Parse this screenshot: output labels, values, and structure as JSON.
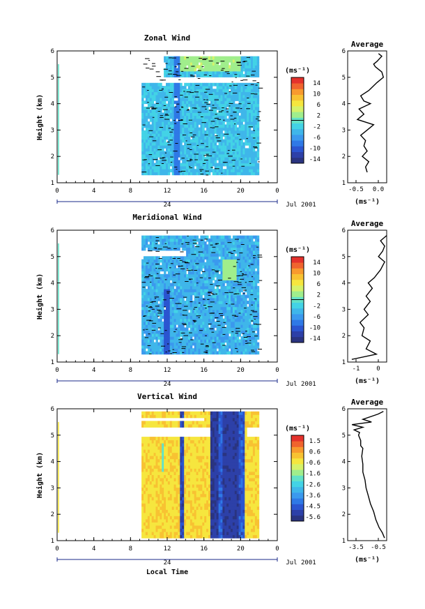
{
  "colors": {
    "colormap": [
      "#2a3480",
      "#2d40a8",
      "#2b55d0",
      "#2f79e6",
      "#3b99ee",
      "#3fb6ea",
      "#43d3e6",
      "#62e2c8",
      "#a0ee8c",
      "#d6f26a",
      "#f6e63e",
      "#f8c232",
      "#f89a2e",
      "#f0642e",
      "#e4322c"
    ]
  },
  "chart_data": [
    {
      "type": "heatmap",
      "title": "Zonal Wind",
      "ylabel": "Height (km)",
      "xlabel": "",
      "xlim": [
        0,
        24
      ],
      "ylim": [
        1,
        6
      ],
      "xticks": [
        "0",
        "4",
        "8",
        "12",
        "16",
        "20",
        "0"
      ],
      "yticks": [
        "1",
        "2",
        "3",
        "4",
        "5",
        "6"
      ],
      "date_label": "24",
      "date_right": "Jul 2001",
      "colorbar": {
        "unit": "(ms⁻¹)",
        "labels": [
          "14",
          "10",
          "6",
          "2",
          "-2",
          "-6",
          "-10",
          "-14"
        ],
        "min": -14,
        "max": 14
      },
      "data_extent": {
        "t_start": 9.2,
        "t_end": 22,
        "h_start": 1.3,
        "h_end": 5.8,
        "typical_value": -3
      }
    },
    {
      "type": "line",
      "title": "Average",
      "xlabel": "(ms⁻¹)",
      "xticks": [
        "-0.5",
        "0.0"
      ],
      "yticks": [
        "1",
        "2",
        "3",
        "4",
        "5",
        "6"
      ],
      "xlim": [
        -0.9,
        0.3
      ],
      "ylim": [
        1,
        6
      ],
      "x": [
        -0.3,
        -0.35,
        -0.25,
        -0.45,
        -0.3,
        -0.4,
        -0.35,
        -0.5,
        -0.3,
        -0.1,
        -0.6,
        -0.4,
        -0.55,
        -0.2,
        -0.4,
        -0.5,
        -0.25,
        0.0,
        0.2,
        0.15,
        -0.05,
        -0.1,
        0.0,
        0.15,
        0.05
      ],
      "y": [
        1.4,
        1.6,
        1.8,
        2.0,
        2.2,
        2.4,
        2.6,
        2.8,
        3.0,
        3.2,
        3.4,
        3.6,
        3.8,
        4.0,
        4.1,
        4.3,
        4.5,
        4.8,
        5.0,
        5.2,
        5.4,
        5.5,
        5.6,
        5.8,
        5.9
      ]
    },
    {
      "type": "heatmap",
      "title": "Meridional Wind",
      "ylabel": "Height (km)",
      "xlabel": "",
      "xlim": [
        0,
        24
      ],
      "ylim": [
        1,
        6
      ],
      "xticks": [
        "0",
        "4",
        "8",
        "12",
        "16",
        "20",
        "0"
      ],
      "yticks": [
        "1",
        "2",
        "3",
        "4",
        "5",
        "6"
      ],
      "date_label": "24",
      "date_right": "Jul 2001",
      "colorbar": {
        "unit": "(ms⁻¹)",
        "labels": [
          "14",
          "10",
          "6",
          "2",
          "-2",
          "-6",
          "-10",
          "-14"
        ],
        "min": -14,
        "max": 14
      },
      "data_extent": {
        "t_start": 9.2,
        "t_end": 22,
        "h_start": 1.3,
        "h_end": 5.8,
        "typical_value": -4
      }
    },
    {
      "type": "line",
      "title": "Average",
      "xlabel": "(ms⁻¹)",
      "xticks": [
        "-1",
        "0"
      ],
      "yticks": [
        "1",
        "2",
        "3",
        "4",
        "5",
        "6"
      ],
      "xlim": [
        -1.3,
        0.6
      ],
      "ylim": [
        1,
        6
      ],
      "x": [
        -1.1,
        0.1,
        -0.4,
        -0.2,
        -0.6,
        -0.5,
        -0.7,
        -0.3,
        -0.5,
        -0.2,
        -0.4,
        -0.1,
        -0.3,
        0.0,
        0.3,
        0.5,
        0.2,
        0.4,
        0.5,
        0.3,
        0.6
      ],
      "y": [
        1.1,
        1.3,
        1.5,
        1.8,
        2.0,
        2.3,
        2.5,
        2.8,
        3.0,
        3.3,
        3.5,
        3.8,
        4.0,
        4.2,
        4.5,
        4.8,
        5.0,
        5.2,
        5.4,
        5.6,
        5.8
      ]
    },
    {
      "type": "heatmap",
      "title": "Vertical Wind",
      "ylabel": "Height (km)",
      "xlabel": "Local Time",
      "xlim": [
        0,
        24
      ],
      "ylim": [
        1,
        6
      ],
      "xticks": [
        "0",
        "4",
        "8",
        "12",
        "16",
        "20",
        "0"
      ],
      "yticks": [
        "1",
        "2",
        "3",
        "4",
        "5",
        "6"
      ],
      "date_label": "24",
      "date_right": "Jul 2001",
      "colorbar": {
        "unit": "(ms⁻¹)",
        "labels": [
          "1.5",
          "0.6",
          "-0.6",
          "-1.6",
          "-2.6",
          "-3.6",
          "-4.5",
          "-5.6"
        ],
        "min": -6,
        "max": 2
      },
      "data_extent": {
        "t_start": 9.2,
        "t_end": 22,
        "h_start": 1.1,
        "h_end": 5.9,
        "typical_value": -0.3
      }
    },
    {
      "type": "line",
      "title": "Average",
      "xlabel": "(ms⁻¹)",
      "xticks": [
        "-3.5",
        "-0.5"
      ],
      "yticks": [
        "1",
        "2",
        "3",
        "4",
        "5",
        "6"
      ],
      "xlim": [
        -4.0,
        -0.4
      ],
      "ylim": [
        1,
        6
      ],
      "x": [
        -0.6,
        -0.8,
        -1.1,
        -1.4,
        -1.6,
        -1.9,
        -2.1,
        -2.3,
        -2.4,
        -2.6,
        -2.6,
        -2.7,
        -2.6,
        -2.8,
        -2.8,
        -2.9,
        -3.0,
        -2.9,
        -3.4,
        -2.6,
        -3.6,
        -1.8,
        -2.6,
        -1.2,
        -0.7
      ],
      "y": [
        1.1,
        1.3,
        1.5,
        1.8,
        2.1,
        2.4,
        2.7,
        3.0,
        3.3,
        3.6,
        3.9,
        4.2,
        4.5,
        4.6,
        4.8,
        4.9,
        5.0,
        5.1,
        5.2,
        5.3,
        5.4,
        5.5,
        5.6,
        5.8,
        5.9
      ]
    }
  ]
}
